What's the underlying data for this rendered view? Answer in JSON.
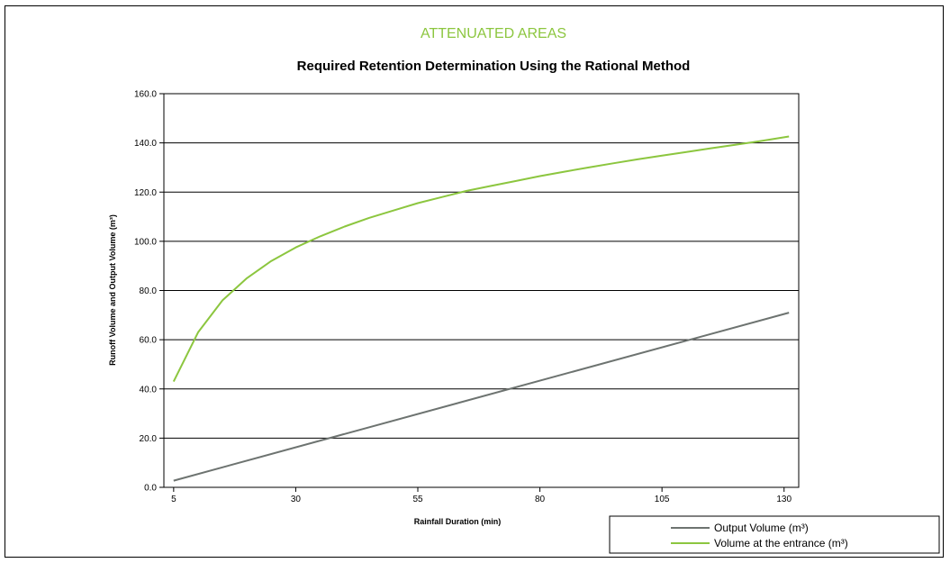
{
  "chart_data": {
    "type": "line",
    "kicker": "ATTENUATED AREAS",
    "title": "Required Retention Determination Using the Rational Method",
    "xlabel": "Rainfall Duration (min)",
    "ylabel": "Runoff Volume and Output Volume (m³)",
    "xlim": [
      3,
      133
    ],
    "ylim": [
      0,
      160
    ],
    "x_ticks": [
      5,
      30,
      55,
      80,
      105,
      130
    ],
    "y_ticks": [
      0,
      20,
      40,
      60,
      80,
      100,
      120,
      140,
      160
    ],
    "y_tick_labels": [
      "0.0",
      "20.0",
      "40.0",
      "60.0",
      "80.0",
      "100.0",
      "120.0",
      "140.0",
      "160.0"
    ],
    "grid": "horizontal",
    "legend_position": "bottom-right",
    "series": [
      {
        "name": "Output Volume (m³)",
        "color": "#6d7370",
        "x": [
          5,
          131
        ],
        "y": [
          2.7,
          71
        ]
      },
      {
        "name": "Volume at the entrance  (m³)",
        "color": "#8cc63f",
        "x": [
          5,
          10,
          15,
          20,
          25,
          30,
          35,
          40,
          45,
          50,
          55,
          60,
          65,
          70,
          75,
          80,
          85,
          90,
          95,
          100,
          105,
          110,
          115,
          120,
          125,
          131
        ],
        "y": [
          43,
          63,
          76,
          85,
          92,
          97.5,
          102,
          106,
          109.5,
          112.5,
          115.5,
          118,
          120.5,
          122.5,
          124.5,
          126.5,
          128.3,
          130,
          131.7,
          133.3,
          134.8,
          136.3,
          137.8,
          139.2,
          140.7,
          142.6
        ]
      }
    ]
  },
  "colors": {
    "kicker": "#8cc63f",
    "grid": "#000000",
    "frame": "#000000"
  }
}
